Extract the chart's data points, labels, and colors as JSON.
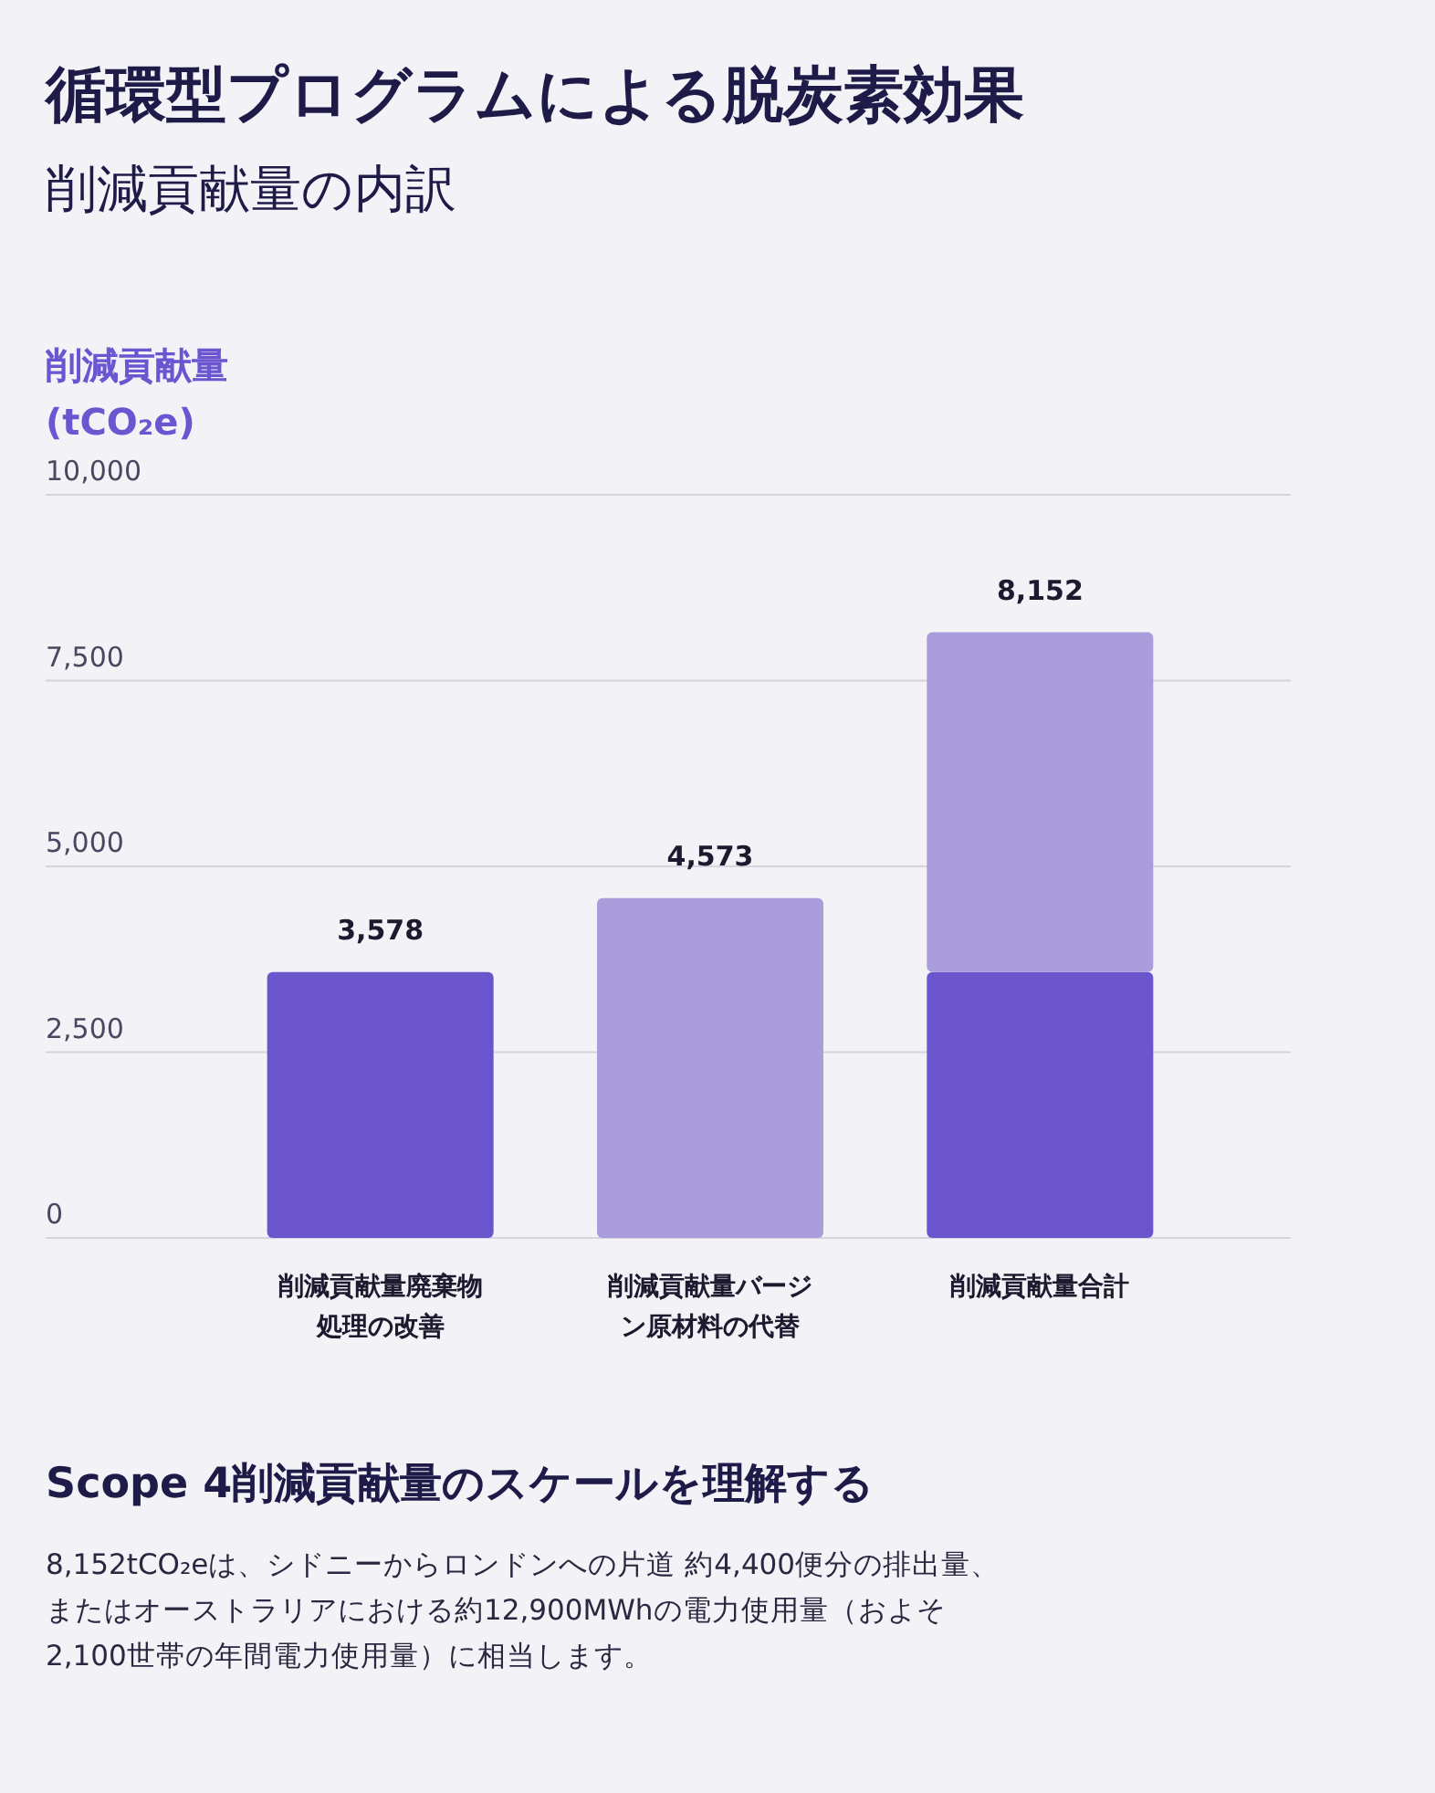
{
  "chart_data": {
    "type": "bar",
    "title": "循環型プログラムによる脱炭素効果",
    "subtitle": "削減貢献量の内訳",
    "ylabel": "削減貢献量\n(tCO₂e)",
    "categories": [
      "削減貢献量廃棄物処理の改善",
      "削減貢献量バージン原材料の代替",
      "削減貢献量合計"
    ],
    "series": [
      {
        "color": "#6a55cc",
        "values": [
          3578,
          null,
          3578
        ]
      },
      {
        "color": "#ab9cdb",
        "values": [
          null,
          4573,
          4573
        ]
      }
    ],
    "stacked": true,
    "ylim": [
      0,
      10000
    ],
    "yticks": [
      0,
      {
        "value": 2500,
        "label": "2,500"
      },
      {
        "value": 5000,
        "label": "5,000"
      },
      {
        "value": 7500,
        "label": "7,500"
      },
      {
        "value": 10000,
        "label": "10,000"
      }
    ],
    "grid": "y",
    "totals": [
      "3,578",
      "4,573",
      "8,152"
    ],
    "annotations": [
      "Scope 4削減貢献量のスケールを理解する",
      "8,152tCO₂eは、シドニーからロンドンへの片道 約4,400便分の排出量、またはオーストラリアにおける約12,900MWhの電力使用量（およそ2,100世帯の年間電力使用量）に相当します。"
    ]
  }
}
